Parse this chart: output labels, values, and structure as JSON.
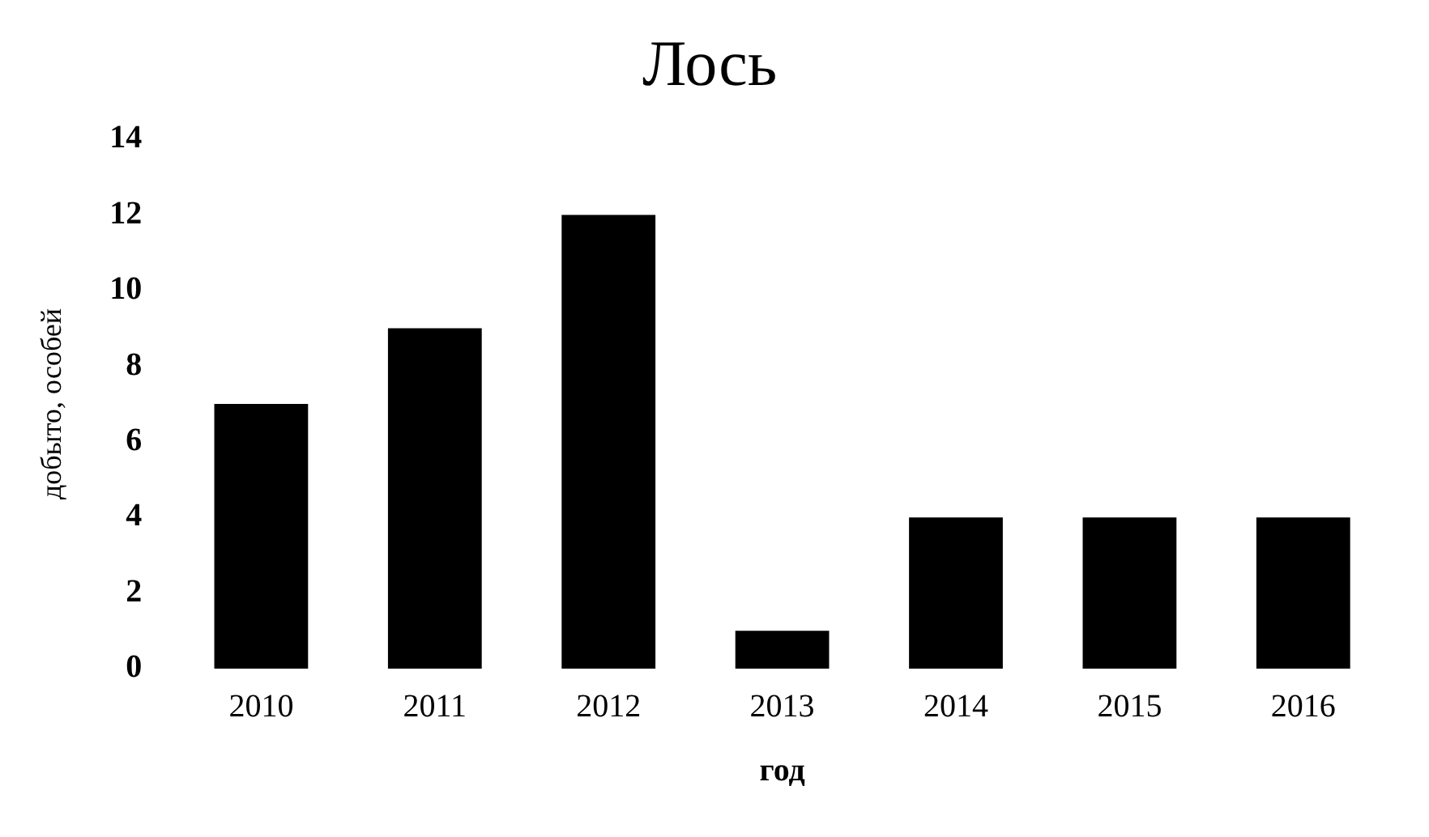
{
  "chart_data": {
    "type": "bar",
    "title": "Лось",
    "xlabel": "год",
    "ylabel": "добыто, особей",
    "categories": [
      "2010",
      "2011",
      "2012",
      "2013",
      "2014",
      "2015",
      "2016"
    ],
    "values": [
      7,
      9,
      12,
      1,
      4,
      4,
      4
    ],
    "color": "#000000",
    "ylim": [
      0,
      14
    ],
    "yticks": [
      0,
      2,
      4,
      6,
      8,
      10,
      12,
      14
    ],
    "grid": false,
    "legend": false
  }
}
